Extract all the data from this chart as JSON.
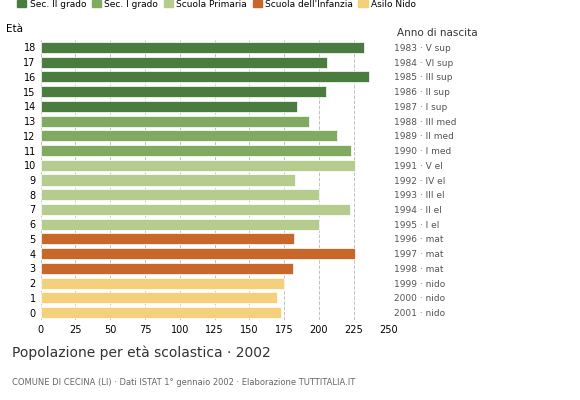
{
  "ages": [
    18,
    17,
    16,
    15,
    14,
    13,
    12,
    11,
    10,
    9,
    8,
    7,
    6,
    5,
    4,
    3,
    2,
    1,
    0
  ],
  "values": [
    232,
    206,
    236,
    205,
    184,
    193,
    213,
    223,
    226,
    183,
    200,
    222,
    200,
    182,
    226,
    181,
    175,
    170,
    173
  ],
  "anno_nascita": [
    "1983 · V sup",
    "1984 · VI sup",
    "1985 · III sup",
    "1986 · II sup",
    "1987 · I sup",
    "1988 · III med",
    "1989 · II med",
    "1990 · I med",
    "1991 · V el",
    "1992 · IV el",
    "1993 · III el",
    "1994 · II el",
    "1995 · I el",
    "1996 · mat",
    "1997 · mat",
    "1998 · mat",
    "1999 · nido",
    "2000 · nido",
    "2001 · nido"
  ],
  "colors": [
    "#4a7c3f",
    "#4a7c3f",
    "#4a7c3f",
    "#4a7c3f",
    "#4a7c3f",
    "#7faa5f",
    "#7faa5f",
    "#7faa5f",
    "#b5cc8e",
    "#b5cc8e",
    "#b5cc8e",
    "#b5cc8e",
    "#b5cc8e",
    "#c7682a",
    "#c7682a",
    "#c7682a",
    "#f5d07a",
    "#f5d07a",
    "#f5d07a"
  ],
  "legend_labels": [
    "Sec. II grado",
    "Sec. I grado",
    "Scuola Primaria",
    "Scuola dell'Infanzia",
    "Asilo Nido"
  ],
  "legend_colors": [
    "#4a7c3f",
    "#7faa5f",
    "#b5cc8e",
    "#c7682a",
    "#f5d07a"
  ],
  "title": "Popolazione per età scolastica · 2002",
  "subtitle": "COMUNE DI CECINA (LI) · Dati ISTAT 1° gennaio 2002 · Elaborazione TUTTITALIA.IT",
  "ylabel": "Età",
  "xlabel_right": "Anno di nascita",
  "xlim": [
    0,
    250
  ],
  "xticks": [
    0,
    25,
    50,
    75,
    100,
    125,
    150,
    175,
    200,
    225,
    250
  ]
}
